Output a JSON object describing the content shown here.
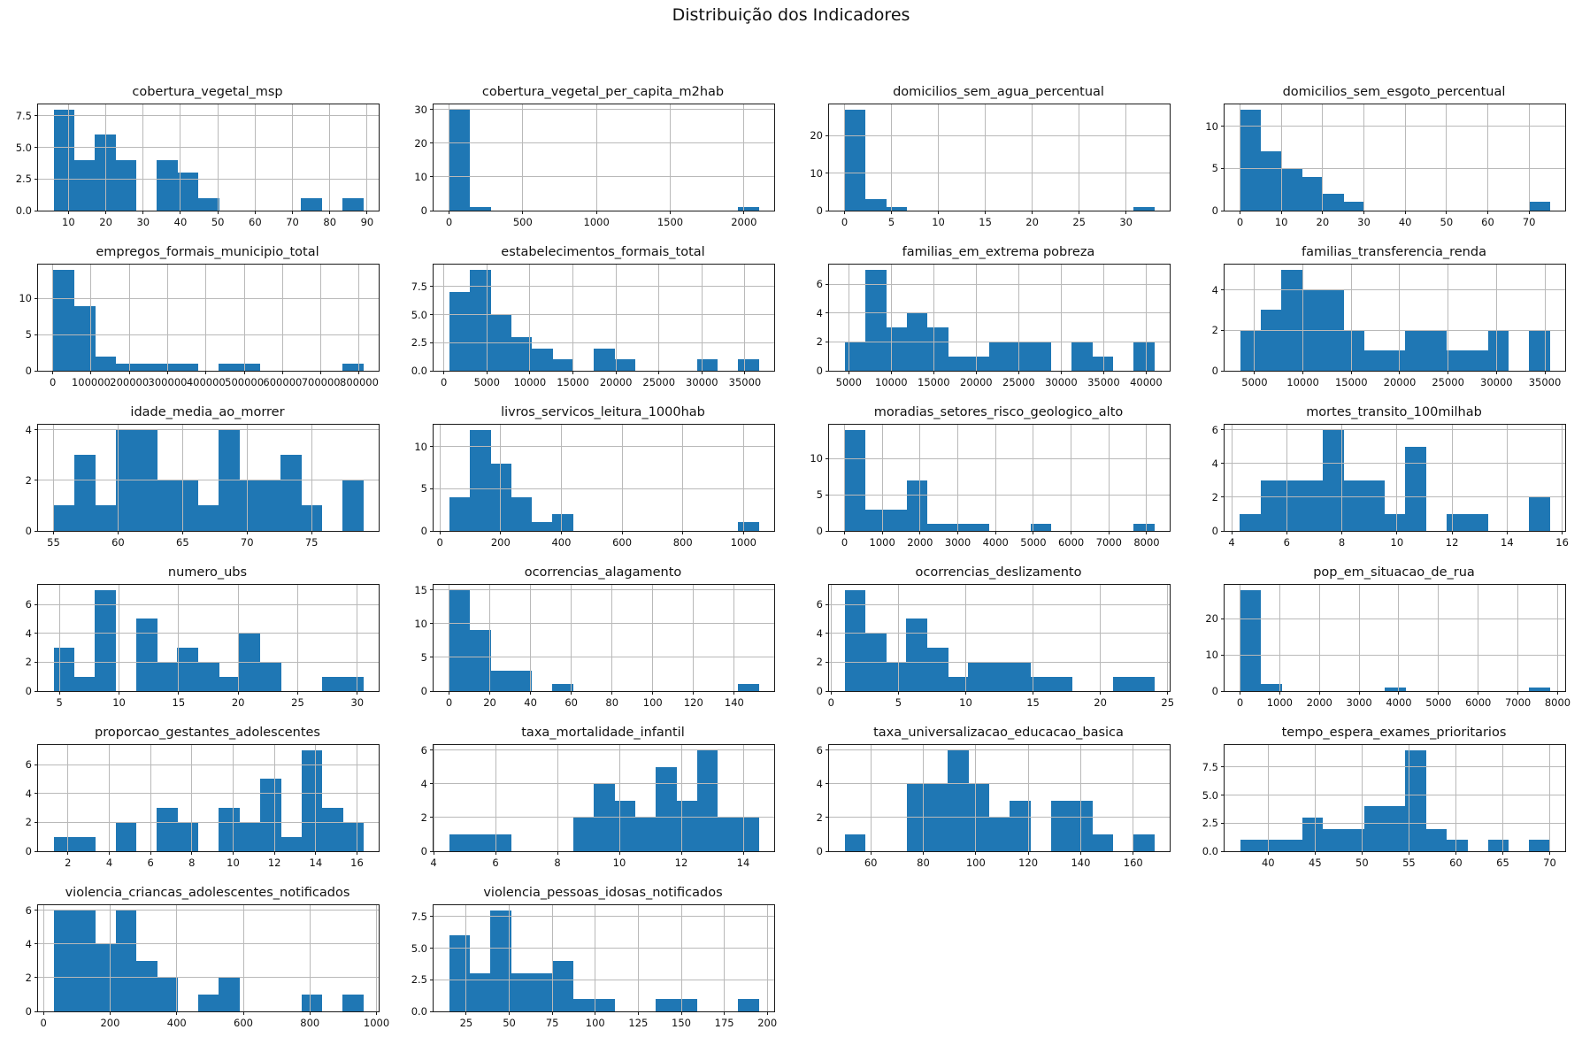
{
  "figure": {
    "title": "Distribuição dos Indicadores",
    "bar_color": "#1f77b4",
    "grid_color": "#b9b9b9",
    "spine_color": "#1a1a1a",
    "background": "#ffffff"
  },
  "chart_data": [
    {
      "type": "histogram",
      "title": "cobertura_vegetal_msp",
      "bin_start": 6,
      "bin_width": 5.53,
      "counts": [
        8,
        4,
        6,
        4,
        0,
        4,
        3,
        1,
        0,
        0,
        0,
        0,
        1,
        0,
        1
      ],
      "xlim": [
        1.85,
        93.1
      ],
      "ymax": 8.4,
      "xticks": [
        10,
        20,
        30,
        40,
        50,
        60,
        70,
        80,
        90
      ],
      "xtick_labels": [
        "10",
        "20",
        "30",
        "40",
        "50",
        "60",
        "70",
        "80",
        "90"
      ],
      "yticks": [
        0,
        2.5,
        5,
        7.5
      ],
      "ytick_labels": [
        "0.0",
        "2.5",
        "5.0",
        "7.5"
      ]
    },
    {
      "type": "histogram",
      "title": "cobertura_vegetal_per_capita_m2hab",
      "bin_start": 0,
      "bin_width": 140,
      "counts": [
        30,
        1,
        0,
        0,
        0,
        0,
        0,
        0,
        0,
        0,
        0,
        0,
        0,
        0,
        1
      ],
      "xlim": [
        -105,
        2205
      ],
      "ymax": 31.5,
      "xticks": [
        0,
        500,
        1000,
        1500,
        2000
      ],
      "xtick_labels": [
        "0",
        "500",
        "1000",
        "1500",
        "2000"
      ],
      "yticks": [
        0,
        10,
        20,
        30
      ],
      "ytick_labels": [
        "0",
        "10",
        "20",
        "30"
      ]
    },
    {
      "type": "histogram",
      "title": "domicilios_sem_agua_percentual",
      "bin_start": 0,
      "bin_width": 2.2,
      "counts": [
        27,
        3,
        1,
        0,
        0,
        0,
        0,
        0,
        0,
        0,
        0,
        0,
        0,
        0,
        1
      ],
      "xlim": [
        -1.65,
        34.65
      ],
      "ymax": 28.35,
      "xticks": [
        0,
        5,
        10,
        15,
        20,
        25,
        30
      ],
      "xtick_labels": [
        "0",
        "5",
        "10",
        "15",
        "20",
        "25",
        "30"
      ],
      "yticks": [
        0,
        10,
        20
      ],
      "ytick_labels": [
        "0",
        "10",
        "20"
      ]
    },
    {
      "type": "histogram",
      "title": "domicilios_sem_esgoto_percentual",
      "bin_start": 0,
      "bin_width": 5,
      "counts": [
        12,
        7,
        5,
        4,
        2,
        1,
        0,
        0,
        0,
        0,
        0,
        0,
        0,
        0,
        1
      ],
      "xlim": [
        -3.75,
        78.75
      ],
      "ymax": 12.6,
      "xticks": [
        0,
        10,
        20,
        30,
        40,
        50,
        60,
        70
      ],
      "xtick_labels": [
        "0",
        "10",
        "20",
        "30",
        "40",
        "50",
        "60",
        "70"
      ],
      "yticks": [
        0,
        5,
        10
      ],
      "ytick_labels": [
        "0",
        "5",
        "10"
      ]
    },
    {
      "type": "histogram",
      "title": "empregos_formais_municipio_total",
      "bin_start": 2000,
      "bin_width": 53900,
      "counts": [
        14,
        9,
        2,
        1,
        1,
        1,
        1,
        0,
        1,
        1,
        0,
        0,
        0,
        0,
        1
      ],
      "xlim": [
        -38400,
        850900
      ],
      "ymax": 14.7,
      "xticks": [
        0,
        100000,
        200000,
        300000,
        400000,
        500000,
        600000,
        700000,
        800000
      ],
      "xtick_labels": [
        "0",
        "100000",
        "200000",
        "300000",
        "400000",
        "500000",
        "600000",
        "700000",
        "800000"
      ],
      "yticks": [
        0,
        5,
        10
      ],
      "ytick_labels": [
        "0",
        "5",
        "10"
      ]
    },
    {
      "type": "histogram",
      "title": "estabelecimentos_formais_total",
      "bin_start": 600,
      "bin_width": 2400,
      "counts": [
        7,
        9,
        5,
        3,
        2,
        1,
        0,
        2,
        1,
        0,
        0,
        0,
        1,
        0,
        1
      ],
      "xlim": [
        -1200,
        38400
      ],
      "ymax": 9.45,
      "xticks": [
        0,
        5000,
        10000,
        15000,
        20000,
        25000,
        30000,
        35000
      ],
      "xtick_labels": [
        "0",
        "5000",
        "10000",
        "15000",
        "20000",
        "25000",
        "30000",
        "35000"
      ],
      "yticks": [
        0,
        2.5,
        5,
        7.5
      ],
      "ytick_labels": [
        "0.0",
        "2.5",
        "5.0",
        "7.5"
      ]
    },
    {
      "type": "histogram",
      "title": "familias_em_extrema pobreza",
      "bin_start": 4500,
      "bin_width": 2430,
      "counts": [
        2,
        7,
        3,
        4,
        3,
        1,
        1,
        2,
        2,
        2,
        0,
        2,
        1,
        0,
        2
      ],
      "xlim": [
        2678,
        42772
      ],
      "ymax": 7.35,
      "xticks": [
        5000,
        10000,
        15000,
        20000,
        25000,
        30000,
        35000,
        40000
      ],
      "xtick_labels": [
        "5000",
        "10000",
        "15000",
        "20000",
        "25000",
        "30000",
        "35000",
        "40000"
      ],
      "yticks": [
        0,
        2,
        4,
        6
      ],
      "ytick_labels": [
        "0",
        "2",
        "4",
        "6"
      ]
    },
    {
      "type": "histogram",
      "title": "familias_transferencia_renda",
      "bin_start": 3500,
      "bin_width": 2133.3,
      "counts": [
        2,
        3,
        5,
        4,
        4,
        2,
        1,
        1,
        2,
        2,
        1,
        1,
        2,
        0,
        2
      ],
      "xlim": [
        1900,
        37100
      ],
      "ymax": 5.25,
      "xticks": [
        5000,
        10000,
        15000,
        20000,
        25000,
        30000,
        35000
      ],
      "xtick_labels": [
        "5000",
        "10000",
        "15000",
        "20000",
        "25000",
        "30000",
        "35000"
      ],
      "yticks": [
        0,
        2,
        4
      ],
      "ytick_labels": [
        "0",
        "2",
        "4"
      ]
    },
    {
      "type": "histogram",
      "title": "idade_media_ao_morrer",
      "bin_start": 55,
      "bin_width": 1.6,
      "counts": [
        1,
        3,
        1,
        4,
        4,
        2,
        2,
        1,
        4,
        2,
        2,
        3,
        1,
        0,
        2
      ],
      "xlim": [
        53.8,
        80.2
      ],
      "ymax": 4.2,
      "xticks": [
        55,
        60,
        65,
        70,
        75
      ],
      "xtick_labels": [
        "55",
        "60",
        "65",
        "70",
        "75"
      ],
      "yticks": [
        0,
        2,
        4
      ],
      "ytick_labels": [
        "0",
        "2",
        "4"
      ]
    },
    {
      "type": "histogram",
      "title": "livros_servicos_leitura_1000hab",
      "bin_start": 30,
      "bin_width": 68,
      "counts": [
        4,
        12,
        8,
        4,
        1,
        2,
        0,
        0,
        0,
        0,
        0,
        0,
        0,
        0,
        1
      ],
      "xlim": [
        -21,
        1101
      ],
      "ymax": 12.6,
      "xticks": [
        0,
        200,
        400,
        600,
        800,
        1000
      ],
      "xtick_labels": [
        "0",
        "200",
        "400",
        "600",
        "800",
        "1000"
      ],
      "yticks": [
        0,
        5,
        10
      ],
      "ytick_labels": [
        "0",
        "5",
        "10"
      ]
    },
    {
      "type": "histogram",
      "title": "moradias_setores_risco_geologico_alto",
      "bin_start": 0,
      "bin_width": 546.7,
      "counts": [
        14,
        3,
        3,
        7,
        1,
        1,
        1,
        0,
        0,
        1,
        0,
        0,
        0,
        0,
        1
      ],
      "xlim": [
        -410,
        8610
      ],
      "ymax": 14.7,
      "xticks": [
        0,
        1000,
        2000,
        3000,
        4000,
        5000,
        6000,
        7000,
        8000
      ],
      "xtick_labels": [
        "0",
        "1000",
        "2000",
        "3000",
        "4000",
        "5000",
        "6000",
        "7000",
        "8000"
      ],
      "yticks": [
        0,
        5,
        10
      ],
      "ytick_labels": [
        "0",
        "5",
        "10"
      ]
    },
    {
      "type": "histogram",
      "title": "mortes_transito_100milhab",
      "bin_start": 4.3,
      "bin_width": 0.75,
      "counts": [
        1,
        3,
        3,
        3,
        6,
        3,
        3,
        1,
        5,
        0,
        1,
        1,
        0,
        0,
        2
      ],
      "xlim": [
        3.74,
        16.11
      ],
      "ymax": 6.3,
      "xticks": [
        4,
        6,
        8,
        10,
        12,
        14,
        16
      ],
      "xtick_labels": [
        "4",
        "6",
        "8",
        "10",
        "12",
        "14",
        "16"
      ],
      "yticks": [
        0,
        2,
        4,
        6
      ],
      "ytick_labels": [
        "0",
        "2",
        "4",
        "6"
      ]
    },
    {
      "type": "histogram",
      "title": "numero_ubs",
      "bin_start": 4.5,
      "bin_width": 1.733,
      "counts": [
        3,
        1,
        7,
        0,
        5,
        2,
        3,
        2,
        1,
        4,
        2,
        0,
        0,
        1,
        1
      ],
      "xlim": [
        3.2,
        31.8
      ],
      "ymax": 7.35,
      "xticks": [
        5,
        10,
        15,
        20,
        25,
        30
      ],
      "xtick_labels": [
        "5",
        "10",
        "15",
        "20",
        "25",
        "30"
      ],
      "yticks": [
        0,
        2,
        4,
        6
      ],
      "ytick_labels": [
        "0",
        "2",
        "4",
        "6"
      ]
    },
    {
      "type": "histogram",
      "title": "ocorrencias_alagamento",
      "bin_start": 0,
      "bin_width": 10.13,
      "counts": [
        15,
        9,
        3,
        3,
        0,
        1,
        0,
        0,
        0,
        0,
        0,
        0,
        0,
        0,
        1
      ],
      "xlim": [
        -7.6,
        159.6
      ],
      "ymax": 15.75,
      "xticks": [
        0,
        20,
        40,
        60,
        80,
        100,
        120,
        140
      ],
      "xtick_labels": [
        "0",
        "20",
        "40",
        "60",
        "80",
        "100",
        "120",
        "140"
      ],
      "yticks": [
        0,
        5,
        10,
        15
      ],
      "ytick_labels": [
        "0",
        "5",
        "10",
        "15"
      ]
    },
    {
      "type": "histogram",
      "title": "ocorrencias_deslizamento",
      "bin_start": 1,
      "bin_width": 1.533,
      "counts": [
        7,
        4,
        2,
        5,
        3,
        1,
        2,
        2,
        2,
        1,
        1,
        0,
        0,
        1,
        1
      ],
      "xlim": [
        -0.15,
        25.15
      ],
      "ymax": 7.35,
      "xticks": [
        0,
        5,
        10,
        15,
        20,
        25
      ],
      "xtick_labels": [
        "0",
        "5",
        "10",
        "15",
        "20",
        "25"
      ],
      "yticks": [
        0,
        2,
        4,
        6
      ],
      "ytick_labels": [
        "0",
        "2",
        "4",
        "6"
      ]
    },
    {
      "type": "histogram",
      "title": "pop_em_situacao_de_rua",
      "bin_start": 0,
      "bin_width": 520,
      "counts": [
        28,
        2,
        0,
        0,
        0,
        0,
        0,
        1,
        0,
        0,
        0,
        0,
        0,
        0,
        1
      ],
      "xlim": [
        -390,
        8190
      ],
      "ymax": 29.4,
      "xticks": [
        0,
        1000,
        2000,
        3000,
        4000,
        5000,
        6000,
        7000,
        8000
      ],
      "xtick_labels": [
        "0",
        "1000",
        "2000",
        "3000",
        "4000",
        "5000",
        "6000",
        "7000",
        "8000"
      ],
      "yticks": [
        0,
        10,
        20
      ],
      "ytick_labels": [
        "0",
        "10",
        "20"
      ]
    },
    {
      "type": "histogram",
      "title": "proporcao_gestantes_adolescentes",
      "bin_start": 1.3,
      "bin_width": 1,
      "counts": [
        1,
        1,
        0,
        2,
        0,
        3,
        2,
        0,
        3,
        2,
        5,
        1,
        7,
        3,
        2
      ],
      "xlim": [
        0.55,
        17.05
      ],
      "ymax": 7.35,
      "xticks": [
        2,
        4,
        6,
        8,
        10,
        12,
        14,
        16
      ],
      "xtick_labels": [
        "2",
        "4",
        "6",
        "8",
        "10",
        "12",
        "14",
        "16"
      ],
      "yticks": [
        0,
        2,
        4,
        6
      ],
      "ytick_labels": [
        "0",
        "2",
        "4",
        "6"
      ]
    },
    {
      "type": "histogram",
      "title": "taxa_mortalidade_infantil",
      "bin_start": 4.5,
      "bin_width": 0.6667,
      "counts": [
        1,
        1,
        1,
        0,
        0,
        0,
        2,
        4,
        3,
        2,
        5,
        3,
        6,
        2,
        2
      ],
      "xlim": [
        4,
        15
      ],
      "ymax": 6.3,
      "xticks": [
        4,
        6,
        8,
        10,
        12,
        14
      ],
      "xtick_labels": [
        "4",
        "6",
        "8",
        "10",
        "12",
        "14"
      ],
      "yticks": [
        0,
        2,
        4,
        6
      ],
      "ytick_labels": [
        "0",
        "2",
        "4",
        "6"
      ]
    },
    {
      "type": "histogram",
      "title": "taxa_universalizacao_educacao_basica",
      "bin_start": 50,
      "bin_width": 7.867,
      "counts": [
        1,
        0,
        0,
        4,
        4,
        6,
        4,
        2,
        3,
        0,
        3,
        3,
        1,
        0,
        1
      ],
      "xlim": [
        44.1,
        173.9
      ],
      "ymax": 6.3,
      "xticks": [
        60,
        80,
        100,
        120,
        140,
        160
      ],
      "xtick_labels": [
        "60",
        "80",
        "100",
        "120",
        "140",
        "160"
      ],
      "yticks": [
        0,
        2,
        4,
        6
      ],
      "ytick_labels": [
        "0",
        "2",
        "4",
        "6"
      ]
    },
    {
      "type": "histogram",
      "title": "tempo_espera_exames_prioritarios",
      "bin_start": 37,
      "bin_width": 2.2,
      "counts": [
        1,
        1,
        1,
        3,
        2,
        2,
        4,
        4,
        9,
        2,
        1,
        0,
        1,
        0,
        1
      ],
      "xlim": [
        35.35,
        71.65
      ],
      "ymax": 9.45,
      "xticks": [
        40,
        45,
        50,
        55,
        60,
        65,
        70
      ],
      "xtick_labels": [
        "40",
        "45",
        "50",
        "55",
        "60",
        "65",
        "70"
      ],
      "yticks": [
        0,
        2.5,
        5,
        7.5
      ],
      "ytick_labels": [
        "0.0",
        "2.5",
        "5.0",
        "7.5"
      ]
    },
    {
      "type": "histogram",
      "title": "violencia_criancas_adolescentes_notificados",
      "bin_start": 30,
      "bin_width": 62,
      "counts": [
        6,
        6,
        4,
        6,
        3,
        2,
        0,
        1,
        2,
        0,
        0,
        0,
        1,
        0,
        1
      ],
      "xlim": [
        -16.5,
        1006.5
      ],
      "ymax": 6.3,
      "xticks": [
        0,
        200,
        400,
        600,
        800,
        1000
      ],
      "xtick_labels": [
        "0",
        "200",
        "400",
        "600",
        "800",
        "1000"
      ],
      "yticks": [
        0,
        2,
        4,
        6
      ],
      "ytick_labels": [
        "0",
        "2",
        "4",
        "6"
      ]
    },
    {
      "type": "histogram",
      "title": "violencia_pessoas_idosas_notificados",
      "bin_start": 15,
      "bin_width": 12,
      "counts": [
        6,
        3,
        8,
        3,
        3,
        4,
        1,
        1,
        0,
        0,
        1,
        1,
        0,
        0,
        1
      ],
      "xlim": [
        6,
        204
      ],
      "ymax": 8.4,
      "xticks": [
        25,
        50,
        75,
        100,
        125,
        150,
        175,
        200
      ],
      "xtick_labels": [
        "25",
        "50",
        "75",
        "100",
        "125",
        "150",
        "175",
        "200"
      ],
      "yticks": [
        0,
        2.5,
        5,
        7.5
      ],
      "ytick_labels": [
        "0.0",
        "2.5",
        "5.0",
        "7.5"
      ]
    }
  ]
}
